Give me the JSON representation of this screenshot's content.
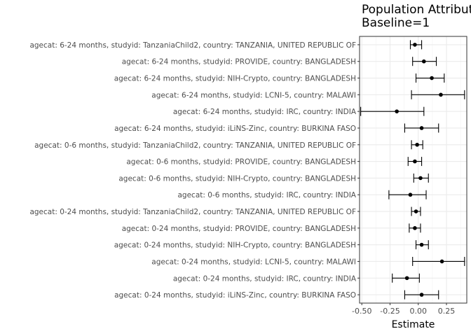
{
  "chart_data": {
    "type": "forest",
    "title": "Population Attributa",
    "subtitle": "Baseline=1",
    "xlabel": "Estimate",
    "ylabel": "",
    "xlim": [
      -0.52,
      0.43
    ],
    "x_ticks": [
      -0.5,
      -0.25,
      0.0,
      0.25
    ],
    "x_tick_labels": [
      "-0.50",
      "-0.25",
      "0.00",
      "0.25"
    ],
    "grid": true,
    "rows": [
      {
        "label": "agecat: 6-24 months, studyid: TanzaniaChild2, country: TANZANIA, UNITED REPUBLIC OF",
        "estimate": -0.03,
        "lower": -0.07,
        "upper": 0.03
      },
      {
        "label": "agecat: 6-24 months, studyid: PROVIDE, country: BANGLADESH",
        "estimate": 0.05,
        "lower": -0.05,
        "upper": 0.16
      },
      {
        "label": "agecat: 6-24 months, studyid: NIH-Crypto, country: BANGLADESH",
        "estimate": 0.12,
        "lower": -0.02,
        "upper": 0.23
      },
      {
        "label": "agecat: 6-24 months, studyid: LCNI-5, country: MALAWI",
        "estimate": 0.2,
        "lower": -0.06,
        "upper": 0.41
      },
      {
        "label": "agecat: 6-24 months, studyid: IRC, country: INDIA",
        "estimate": -0.19,
        "lower": -0.51,
        "upper": 0.05
      },
      {
        "label": "agecat: 6-24 months, studyid: iLiNS-Zinc, country: BURKINA FASO",
        "estimate": 0.03,
        "lower": -0.12,
        "upper": 0.18
      },
      {
        "label": "agecat: 0-6 months, studyid: TanzaniaChild2, country: TANZANIA, UNITED REPUBLIC OF",
        "estimate": -0.01,
        "lower": -0.06,
        "upper": 0.04
      },
      {
        "label": "agecat: 0-6 months, studyid: PROVIDE, country: BANGLADESH",
        "estimate": -0.03,
        "lower": -0.09,
        "upper": 0.03
      },
      {
        "label": "agecat: 0-6 months, studyid: NIH-Crypto, country: BANGLADESH",
        "estimate": 0.02,
        "lower": -0.04,
        "upper": 0.09
      },
      {
        "label": "agecat: 0-6 months, studyid: IRC, country: INDIA",
        "estimate": -0.07,
        "lower": -0.26,
        "upper": 0.07
      },
      {
        "label": "agecat: 0-24 months, studyid: TanzaniaChild2, country: TANZANIA, UNITED REPUBLIC OF",
        "estimate": -0.02,
        "lower": -0.06,
        "upper": 0.02
      },
      {
        "label": "agecat: 0-24 months, studyid: PROVIDE, country: BANGLADESH",
        "estimate": -0.03,
        "lower": -0.08,
        "upper": 0.02
      },
      {
        "label": "agecat: 0-24 months, studyid: NIH-Crypto, country: BANGLADESH",
        "estimate": 0.03,
        "lower": -0.02,
        "upper": 0.09
      },
      {
        "label": "agecat: 0-24 months, studyid: LCNI-5, country: MALAWI",
        "estimate": 0.21,
        "lower": -0.05,
        "upper": 0.41
      },
      {
        "label": "agecat: 0-24 months, studyid: IRC, country: INDIA",
        "estimate": -0.1,
        "lower": -0.23,
        "upper": 0.01
      },
      {
        "label": "agecat: 0-24 months, studyid: iLiNS-Zinc, country: BURKINA FASO",
        "estimate": 0.03,
        "lower": -0.12,
        "upper": 0.18
      }
    ]
  }
}
